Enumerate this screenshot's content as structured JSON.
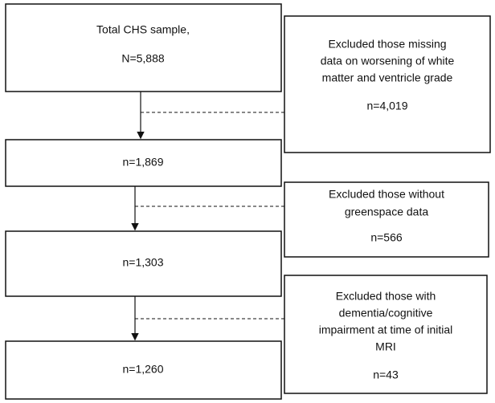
{
  "nodes": [
    {
      "lines": [
        "Total CHS sample,",
        "N=5,888"
      ]
    },
    {
      "lines": [
        "n=1,869"
      ]
    },
    {
      "lines": [
        "n=1,303"
      ]
    },
    {
      "lines": [
        "n=1,260"
      ]
    }
  ],
  "exclusions": [
    {
      "lines": [
        "Excluded those missing",
        "data on worsening of white",
        "matter and ventricle grade"
      ],
      "count": "n=4,019"
    },
    {
      "lines": [
        "Excluded those without",
        "greenspace data"
      ],
      "count": "n=566"
    },
    {
      "lines": [
        "Excluded those with",
        "dementia/cognitive",
        "impairment at time of initial",
        "MRI"
      ],
      "count": "n=43"
    }
  ]
}
